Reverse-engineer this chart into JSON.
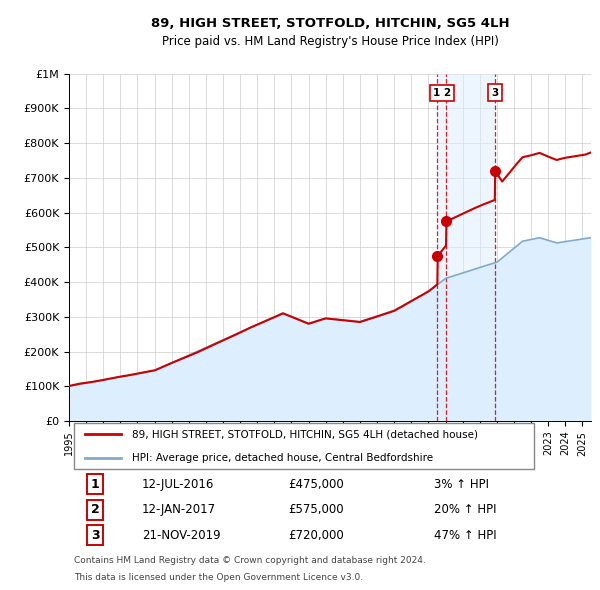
{
  "title": "89, HIGH STREET, STOTFOLD, HITCHIN, SG5 4LH",
  "subtitle": "Price paid vs. HM Land Registry's House Price Index (HPI)",
  "property_label": "89, HIGH STREET, STOTFOLD, HITCHIN, SG5 4LH (detached house)",
  "hpi_label": "HPI: Average price, detached house, Central Bedfordshire",
  "footer_line1": "Contains HM Land Registry data © Crown copyright and database right 2024.",
  "footer_line2": "This data is licensed under the Open Government Licence v3.0.",
  "property_color": "#cc0000",
  "hpi_color": "#7faacc",
  "hpi_fill_color": "#ddeeff",
  "vline_color": "#cc0000",
  "shade_color": "#ddeeff",
  "ylim": [
    0,
    1000000
  ],
  "yticks": [
    0,
    100000,
    200000,
    300000,
    400000,
    500000,
    600000,
    700000,
    800000,
    900000,
    1000000
  ],
  "ytick_labels": [
    "£0",
    "£100K",
    "£200K",
    "£300K",
    "£400K",
    "£500K",
    "£600K",
    "£700K",
    "£800K",
    "£900K",
    "£1M"
  ],
  "xlim_start": 1995.0,
  "xlim_end": 2025.5,
  "trans_year1": 2016.53,
  "trans_year2": 2017.03,
  "trans_year3": 2019.89,
  "trans_price1": 475000,
  "trans_price2": 575000,
  "trans_price3": 720000,
  "trans_date1": "12-JUL-2016",
  "trans_date2": "12-JAN-2017",
  "trans_date3": "21-NOV-2019",
  "trans_pct1": "3% ↑ HPI",
  "trans_pct2": "20% ↑ HPI",
  "trans_pct3": "47% ↑ HPI"
}
